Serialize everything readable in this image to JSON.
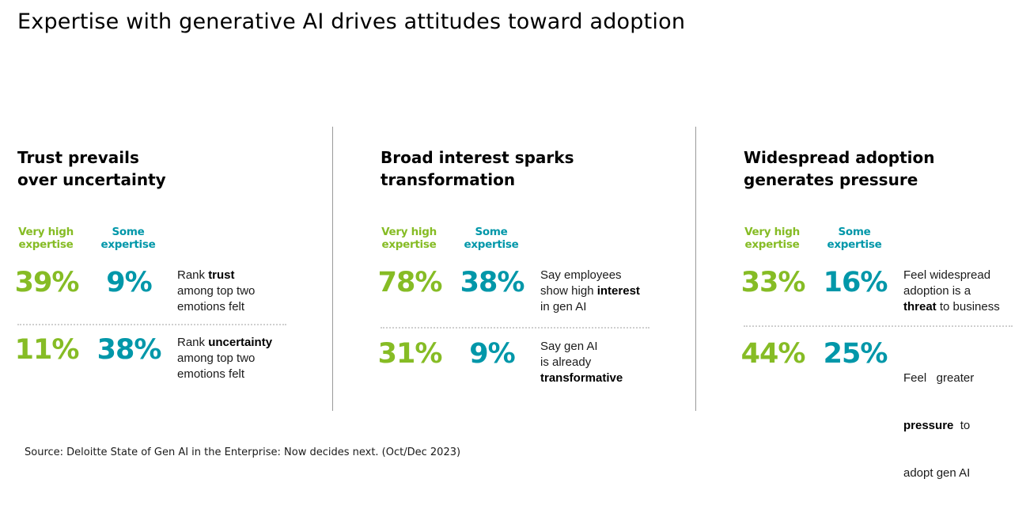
{
  "title": "Expertise with generative AI drives attitudes toward adoption",
  "colors": {
    "very_high": "#86bc25",
    "some": "#0097a9"
  },
  "column_labels": {
    "very_high_line1": "Very high",
    "very_high_line2": "expertise",
    "some_line1": "Some",
    "some_line2": "expertise"
  },
  "panels": [
    {
      "heading_line1": "Trust prevails",
      "heading_line2": "over uncertainty",
      "rows": [
        {
          "very_high": "39%",
          "some": "9%",
          "desc": {
            "pre": "Rank ",
            "bold": "trust",
            "post": "",
            "line2": "among top two",
            "line3": "emotions felt"
          }
        },
        {
          "very_high": "11%",
          "some": "38%",
          "desc": {
            "pre": "Rank ",
            "bold": "uncertainty",
            "post": "",
            "line2": "among top two",
            "line3": "emotions felt"
          }
        }
      ]
    },
    {
      "heading_line1": "Broad interest sparks",
      "heading_line2": "transformation",
      "rows": [
        {
          "very_high": "78%",
          "some": "38%",
          "desc": {
            "line1": "Say employees",
            "pre": "show high ",
            "bold": "interest",
            "line3": "in gen AI"
          }
        },
        {
          "very_high": "31%",
          "some": "9%",
          "desc": {
            "line1": "Say gen AI",
            "line2": "is already",
            "bold": "transformative"
          }
        }
      ]
    },
    {
      "heading_line1": "Widespread adoption",
      "heading_line2": "generates pressure",
      "rows": [
        {
          "very_high": "33%",
          "some": "16%",
          "desc": {
            "line1": "Feel widespread",
            "line2": "adoption is a",
            "bold": "threat",
            "post": " to business"
          }
        },
        {
          "very_high": "44%",
          "some": "25%",
          "desc": {
            "line1": "Feel   greater",
            "bold": "pressure",
            "post": "  to",
            "line3": "adopt gen AI"
          }
        }
      ]
    }
  ],
  "source": "Source: Deloitte State of Gen AI in the Enterprise: Now decides next. (Oct/Dec 2023)"
}
